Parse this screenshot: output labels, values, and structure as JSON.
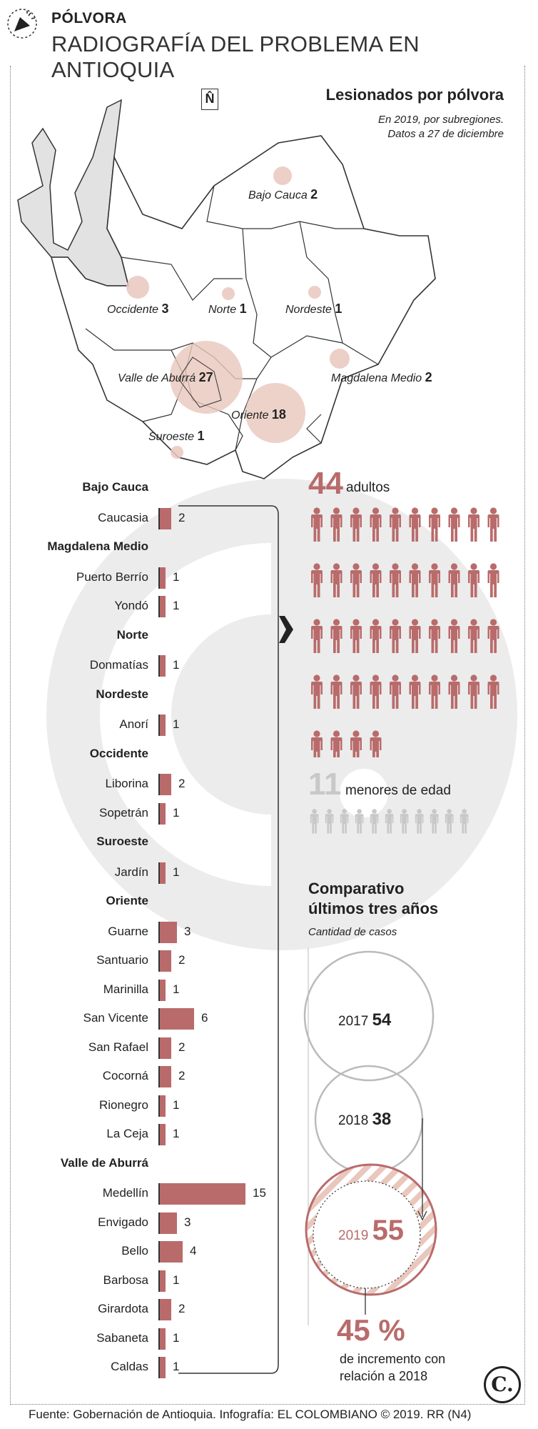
{
  "header": {
    "kicker": "PÓLVORA",
    "title": "RADIOGRAFÍA DEL PROBLEMA EN ANTIOQUIA"
  },
  "map": {
    "north_symbol": "N̂",
    "legend_title": "Lesionados por pólvora",
    "legend_sub1": "En 2019, por subregiones.",
    "legend_sub2": "Datos a 27 de diciembre",
    "regions": [
      {
        "name": "Bajo Cauca",
        "value": 2
      },
      {
        "name": "Occidente",
        "value": 3
      },
      {
        "name": "Norte",
        "value": 1
      },
      {
        "name": "Nordeste",
        "value": 1
      },
      {
        "name": "Valle de Aburrá",
        "value": 27
      },
      {
        "name": "Magdalena Medio",
        "value": 2
      },
      {
        "name": "Oriente",
        "value": 18
      },
      {
        "name": "Suroeste",
        "value": 1
      }
    ]
  },
  "chart_data": [
    {
      "type": "bar",
      "groups": [
        {
          "name": "Bajo Cauca",
          "items": [
            {
              "name": "Caucasia",
              "value": 2
            }
          ]
        },
        {
          "name": "Magdalena Medio",
          "items": [
            {
              "name": "Puerto Berrío",
              "value": 1
            },
            {
              "name": "Yondó",
              "value": 1
            }
          ]
        },
        {
          "name": "Norte",
          "items": [
            {
              "name": "Donmatías",
              "value": 1
            }
          ]
        },
        {
          "name": "Nordeste",
          "items": [
            {
              "name": "Anorí",
              "value": 1
            }
          ]
        },
        {
          "name": "Occidente",
          "items": [
            {
              "name": "Liborina",
              "value": 2
            },
            {
              "name": "Sopetrán",
              "value": 1
            }
          ]
        },
        {
          "name": "Suroeste",
          "items": [
            {
              "name": "Jardín",
              "value": 1
            }
          ]
        },
        {
          "name": "Oriente",
          "items": [
            {
              "name": "Guarne",
              "value": 3
            },
            {
              "name": "Santuario",
              "value": 2
            },
            {
              "name": "Marinilla",
              "value": 1
            },
            {
              "name": "San Vicente",
              "value": 6
            },
            {
              "name": "San Rafael",
              "value": 2
            },
            {
              "name": "Cocorná",
              "value": 2
            },
            {
              "name": "Rionegro",
              "value": 1
            },
            {
              "name": "La Ceja",
              "value": 1
            }
          ]
        },
        {
          "name": "Valle de Aburrá",
          "items": [
            {
              "name": "Medellín",
              "value": 15
            },
            {
              "name": "Envigado",
              "value": 3
            },
            {
              "name": "Bello",
              "value": 4
            },
            {
              "name": "Barbosa",
              "value": 1
            },
            {
              "name": "Girardota",
              "value": 2
            },
            {
              "name": "Sabaneta",
              "value": 1
            },
            {
              "name": "Caldas",
              "value": 1
            }
          ]
        }
      ]
    },
    {
      "type": "pictogram",
      "adults": {
        "value": 44,
        "label": "adultos"
      },
      "minors": {
        "value": 11,
        "label": "menores de edad"
      }
    },
    {
      "type": "bubble",
      "title": "Comparativo últimos tres años",
      "subtitle": "Cantidad de casos",
      "years": [
        {
          "year": "2017",
          "value": 54
        },
        {
          "year": "2018",
          "value": 38
        },
        {
          "year": "2019",
          "value": 55
        }
      ],
      "increase": "45 %",
      "increase_text": "de incremento con relación a 2018"
    }
  ],
  "adults_value": "44",
  "adults_label": "adultos",
  "minors_value": "11",
  "minors_label": "menores de edad",
  "compare_title_1": "Comparativo",
  "compare_title_2": "últimos tres años",
  "compare_sub": "Cantidad de casos",
  "increase_value": "45 %",
  "increase_line1": "de incremento con",
  "increase_line2": "relación a 2018",
  "source": "Fuente: Gobernación de Antioquia. Infografía: EL COLOMBIANO © 2019. RR (N4)",
  "logo_text": "C.",
  "colors": {
    "accent": "#b96b6b",
    "bubble": "#e9c7bd",
    "grey": "#c8c8c8",
    "watermark": "#ececec"
  }
}
